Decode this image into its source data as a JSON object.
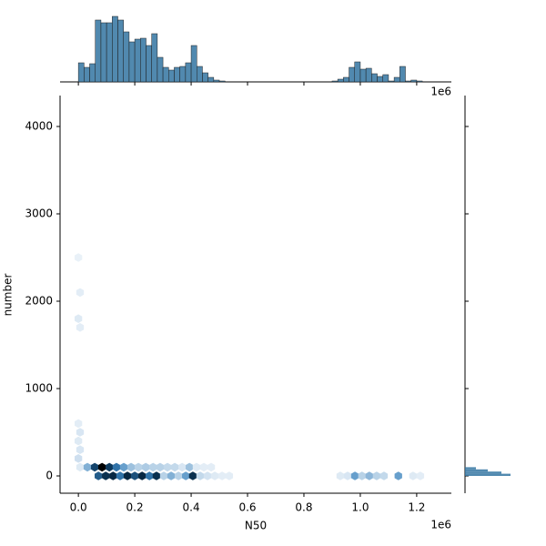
{
  "chart_data": {
    "type": "hexbin",
    "x_label": "N50",
    "y_label": "number",
    "x_offset_label": "1e6",
    "top_offset_label": "1e6",
    "xlim": [
      -0.065,
      1.323
    ],
    "ylim": [
      -198,
      4354
    ],
    "xticks": [
      {
        "value": 0,
        "label": "0.0"
      },
      {
        "value": 0.2,
        "label": "0.2"
      },
      {
        "value": 0.4,
        "label": "0.4"
      },
      {
        "value": 0.6,
        "label": "0.6"
      },
      {
        "value": 0.8,
        "label": "0.8"
      },
      {
        "value": 1,
        "label": "1.0"
      },
      {
        "value": 1.2,
        "label": "1.2"
      }
    ],
    "yticks": [
      0,
      1000,
      2000,
      3000,
      4000
    ],
    "colors": [
      "#eef4fa",
      "#3a82bc",
      "#0b3558",
      "#000000"
    ],
    "hist_color": "#3274a1",
    "hexbins": {
      "x": [
        0.071,
        0.097,
        0.123,
        0.148,
        0.174,
        0.2,
        0.226,
        0.252,
        0.277,
        0.303,
        0.329,
        0.355,
        0.381,
        0.406,
        0.432,
        0.458,
        0.484,
        0.51,
        0.535,
        0.929,
        0.955,
        0.981,
        1.006,
        1.032,
        1.058,
        1.084,
        1.135,
        1.187,
        1.213,
        0.006,
        0.032,
        0.058,
        0.084,
        0.11,
        0.135,
        0.161,
        0.187,
        0.213,
        0.239,
        0.265,
        0.29,
        0.316,
        0.342,
        0.368,
        0.394,
        0.419,
        0.445,
        0.471,
        0,
        0.006,
        0,
        0.006,
        0,
        0.006,
        0,
        0.006,
        0
      ],
      "y": [
        0,
        0,
        0,
        0,
        0,
        0,
        0,
        0,
        0,
        0,
        0,
        0,
        0,
        0,
        0,
        0,
        0,
        0,
        0,
        0,
        0,
        0,
        0,
        0,
        0,
        0,
        0,
        0,
        0,
        100,
        100,
        100,
        100,
        100,
        100,
        100,
        100,
        100,
        100,
        100,
        100,
        100,
        100,
        100,
        100,
        100,
        100,
        100,
        200,
        300,
        400,
        500,
        600,
        1700,
        1800,
        2100,
        2500
      ],
      "counts": [
        50,
        70,
        75,
        40,
        75,
        55,
        75,
        40,
        70,
        10,
        20,
        10,
        25,
        70,
        8,
        5,
        3,
        2,
        2,
        3,
        4,
        25,
        10,
        18,
        10,
        8,
        25,
        3,
        2,
        3,
        20,
        60,
        100,
        65,
        40,
        25,
        15,
        10,
        12,
        10,
        10,
        8,
        8,
        4,
        15,
        3,
        2,
        2,
        6,
        4,
        3,
        4,
        2,
        2,
        3,
        2,
        1
      ]
    },
    "top_hist": {
      "bins": [
        0,
        0.02,
        0.04,
        0.06,
        0.08,
        0.1,
        0.12,
        0.14,
        0.16,
        0.18,
        0.2,
        0.22,
        0.24,
        0.26,
        0.28,
        0.3,
        0.32,
        0.34,
        0.36,
        0.38,
        0.4,
        0.42,
        0.44,
        0.46,
        0.48,
        0.5,
        0.52,
        0.54,
        0.56,
        0.58,
        0.6,
        0.62,
        0.64,
        0.66,
        0.68,
        0.7,
        0.72,
        0.74,
        0.76,
        0.78,
        0.8,
        0.82,
        0.84,
        0.86,
        0.88,
        0.9,
        0.92,
        0.94,
        0.96,
        0.98,
        1,
        1.02,
        1.04,
        1.06,
        1.08,
        1.1,
        1.12,
        1.14,
        1.16,
        1.18,
        1.2,
        1.22
      ],
      "counts": [
        21,
        16,
        20,
        68,
        65,
        65,
        72,
        68,
        55,
        44,
        47,
        48,
        40,
        53,
        27,
        16,
        13,
        16,
        17,
        21,
        40,
        17,
        10,
        5,
        2,
        1,
        0,
        0,
        0,
        0,
        0,
        0,
        0,
        0,
        0,
        0,
        0,
        0,
        0,
        0,
        0,
        0,
        0,
        0,
        0,
        1,
        3,
        5,
        16,
        22,
        14,
        15,
        9,
        6,
        8,
        1,
        5,
        17,
        1,
        2,
        1
      ]
    },
    "right_hist": {
      "bins": [
        0,
        25,
        50,
        75,
        100
      ],
      "counts": [
        50,
        40,
        25,
        12
      ]
    }
  }
}
